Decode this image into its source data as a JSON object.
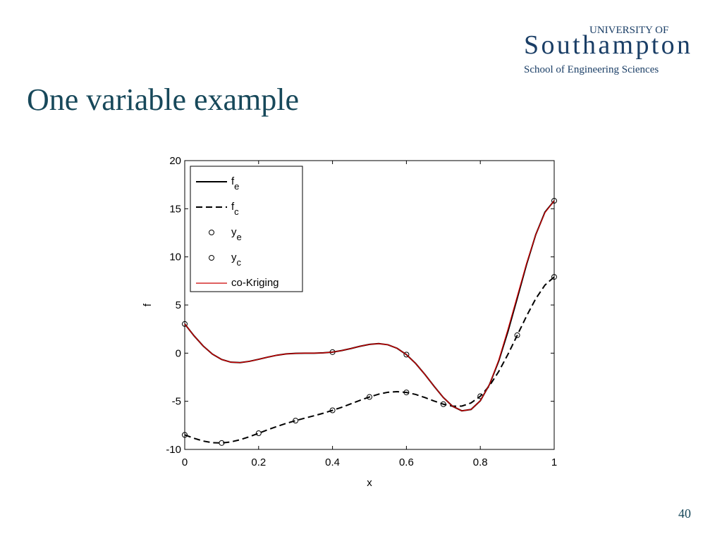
{
  "slide": {
    "title": "One variable example",
    "logo_top": "UNIVERSITY OF",
    "logo_main": "Southampton",
    "logo_sub": "School of Engineering Sciences",
    "page_number": "40"
  },
  "chart_data": {
    "type": "line",
    "xlabel": "x",
    "ylabel": "f",
    "xlim": [
      0,
      1
    ],
    "ylim": [
      -10,
      20
    ],
    "xticks": [
      0,
      0.2,
      0.4,
      0.6,
      0.8,
      1
    ],
    "yticks": [
      -10,
      -5,
      0,
      5,
      10,
      15,
      20
    ],
    "grid": false,
    "legend": "upper left",
    "x": [
      0,
      0.025,
      0.05,
      0.075,
      0.1,
      0.125,
      0.15,
      0.175,
      0.2,
      0.225,
      0.25,
      0.275,
      0.3,
      0.325,
      0.35,
      0.375,
      0.4,
      0.425,
      0.45,
      0.475,
      0.5,
      0.525,
      0.55,
      0.575,
      0.6,
      0.625,
      0.65,
      0.675,
      0.7,
      0.725,
      0.75,
      0.775,
      0.8,
      0.825,
      0.85,
      0.875,
      0.9,
      0.925,
      0.95,
      0.975,
      1
    ],
    "series": [
      {
        "name": "f",
        "subscript": "e",
        "color": "#000000",
        "style": "solid",
        "values": [
          3.03,
          1.81,
          0.74,
          -0.1,
          -0.66,
          -0.94,
          -0.98,
          -0.85,
          -0.64,
          -0.41,
          -0.21,
          -0.08,
          -0.02,
          0,
          0,
          0.03,
          0.11,
          0.27,
          0.48,
          0.72,
          0.91,
          0.99,
          0.87,
          0.5,
          -0.15,
          -1.07,
          -2.21,
          -3.44,
          -4.61,
          -5.52,
          -5.99,
          -5.85,
          -4.95,
          -3.25,
          -0.8,
          2.27,
          5.71,
          9.19,
          12.3,
          14.65,
          15.83
        ]
      },
      {
        "name": "f",
        "subscript": "c",
        "color": "#000000",
        "style": "dashed",
        "values": [
          -8.49,
          -8.84,
          -9.13,
          -9.3,
          -9.33,
          -9.22,
          -8.99,
          -8.68,
          -8.32,
          -7.95,
          -7.61,
          -7.29,
          -7.01,
          -6.75,
          -6.5,
          -6.24,
          -5.94,
          -5.62,
          -5.26,
          -4.89,
          -4.55,
          -4.26,
          -4.06,
          -4,
          -4.08,
          -4.29,
          -4.61,
          -4.97,
          -5.3,
          -5.51,
          -5.5,
          -5.17,
          -4.48,
          -3.38,
          -1.9,
          -0.11,
          1.86,
          3.84,
          5.65,
          7.07,
          7.92
        ]
      },
      {
        "name": "y",
        "subscript": "e",
        "color": "#000000",
        "style": "markers",
        "x": [
          0,
          0.4,
          0.6,
          1
        ],
        "values": [
          3.03,
          0.11,
          -0.15,
          15.83
        ]
      },
      {
        "name": "y",
        "subscript": "c",
        "color": "#000000",
        "style": "markers",
        "x": [
          0,
          0.1,
          0.2,
          0.3,
          0.4,
          0.5,
          0.6,
          0.7,
          0.8,
          0.9,
          1
        ],
        "values": [
          -8.49,
          -9.33,
          -8.32,
          -7.01,
          -5.94,
          -4.55,
          -4.08,
          -5.3,
          -4.48,
          1.86,
          7.92
        ]
      },
      {
        "name": "co-Kriging",
        "color": "#cc0000",
        "style": "solid",
        "values": [
          3.03,
          1.81,
          0.74,
          -0.1,
          -0.66,
          -0.94,
          -0.98,
          -0.85,
          -0.64,
          -0.41,
          -0.21,
          -0.08,
          -0.02,
          0,
          0,
          0.03,
          0.11,
          0.27,
          0.48,
          0.72,
          0.91,
          0.99,
          0.87,
          0.5,
          -0.15,
          -1.07,
          -2.21,
          -3.44,
          -4.61,
          -5.52,
          -5.99,
          -5.85,
          -4.95,
          -3.25,
          -0.7,
          2.5,
          5.9,
          9.3,
          12.3,
          14.6,
          15.83
        ]
      }
    ]
  }
}
